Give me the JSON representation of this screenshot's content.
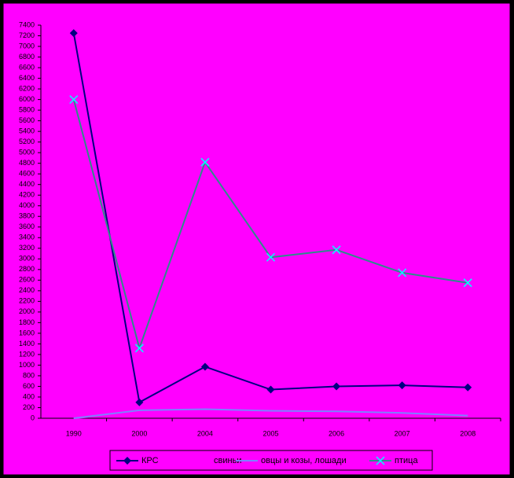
{
  "chart_data": {
    "type": "line",
    "categories": [
      "1990",
      "2000",
      "2004",
      "2005",
      "2006",
      "2007",
      "2008"
    ],
    "series": [
      {
        "name": "КРС",
        "color": "#000080",
        "marker": "diamond",
        "values": [
          7250,
          300,
          970,
          540,
          600,
          620,
          580
        ]
      },
      {
        "name": "свиньи",
        "color": "#ff00ff",
        "marker": "none",
        "values": [
          0,
          100,
          120,
          110,
          100,
          90,
          60
        ]
      },
      {
        "name": "овцы и козы, лошади",
        "color": "#7f7fff",
        "marker": "none",
        "values": [
          0,
          150,
          170,
          140,
          130,
          100,
          50
        ]
      },
      {
        "name": "птица",
        "color": "#2e8b8b",
        "marker": "x",
        "marker_color": "#00ffff",
        "values": [
          6000,
          1320,
          4820,
          3030,
          3170,
          2740,
          2550
        ]
      }
    ],
    "ylim": [
      0,
      7400
    ],
    "yticks": [
      0,
      200,
      400,
      600,
      800,
      1000,
      1200,
      1400,
      1600,
      1800,
      2000,
      2200,
      2400,
      2600,
      2800,
      3000,
      3200,
      3400,
      3600,
      3800,
      4000,
      4200,
      4400,
      4600,
      4800,
      5000,
      5200,
      5400,
      5600,
      5800,
      6000,
      6200,
      6400,
      6600,
      6800,
      7000,
      7200,
      7400
    ],
    "background": "#ff00ff"
  }
}
